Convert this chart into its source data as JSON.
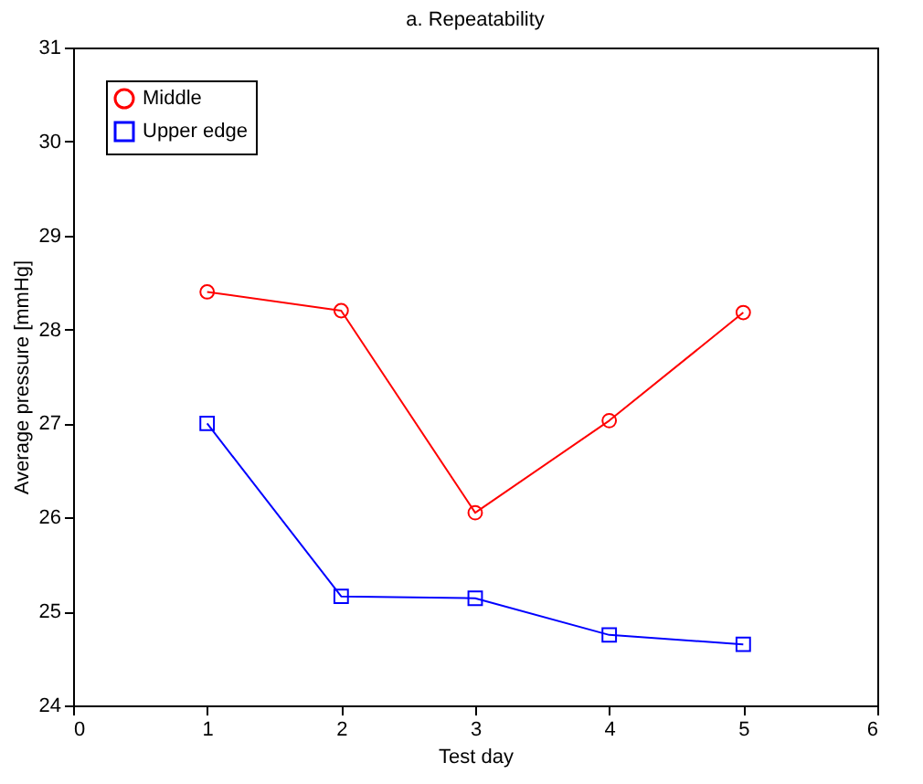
{
  "chart_data": {
    "type": "line",
    "title": "a. Repeatability",
    "xlabel": "Test day",
    "ylabel": "Average pressure [mmHg]",
    "x": [
      1,
      2,
      3,
      4,
      5
    ],
    "series": [
      {
        "name": "Middle",
        "color": "#ff0000",
        "marker": "circle",
        "values": [
          28.4,
          28.2,
          26.05,
          27.03,
          28.18
        ]
      },
      {
        "name": "Upper edge",
        "color": "#0000ff",
        "marker": "square",
        "values": [
          27.0,
          25.16,
          25.14,
          24.75,
          24.65
        ]
      }
    ],
    "xlim": [
      0,
      6
    ],
    "xticks": [
      0,
      1,
      2,
      3,
      4,
      5,
      6
    ],
    "ylim": [
      24,
      31
    ],
    "yticks": [
      24,
      25,
      26,
      27,
      28,
      29,
      30,
      31
    ],
    "grid": false,
    "legend": "top left",
    "line_style": "solid"
  }
}
